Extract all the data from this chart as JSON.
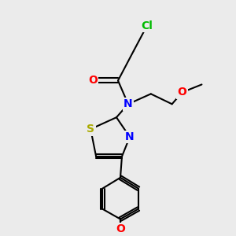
{
  "bg_color": "#ebebeb",
  "bond_color": "#000000",
  "bond_width": 1.5,
  "font_size": 10,
  "atoms": {
    "Cl": {
      "color": "#00bb00",
      "size": 10
    },
    "O": {
      "color": "#ff0000",
      "size": 10
    },
    "N": {
      "color": "#0000ff",
      "size": 10
    },
    "S": {
      "color": "#bbbb00",
      "size": 10
    },
    "C": {
      "color": "#000000",
      "size": 10
    }
  }
}
